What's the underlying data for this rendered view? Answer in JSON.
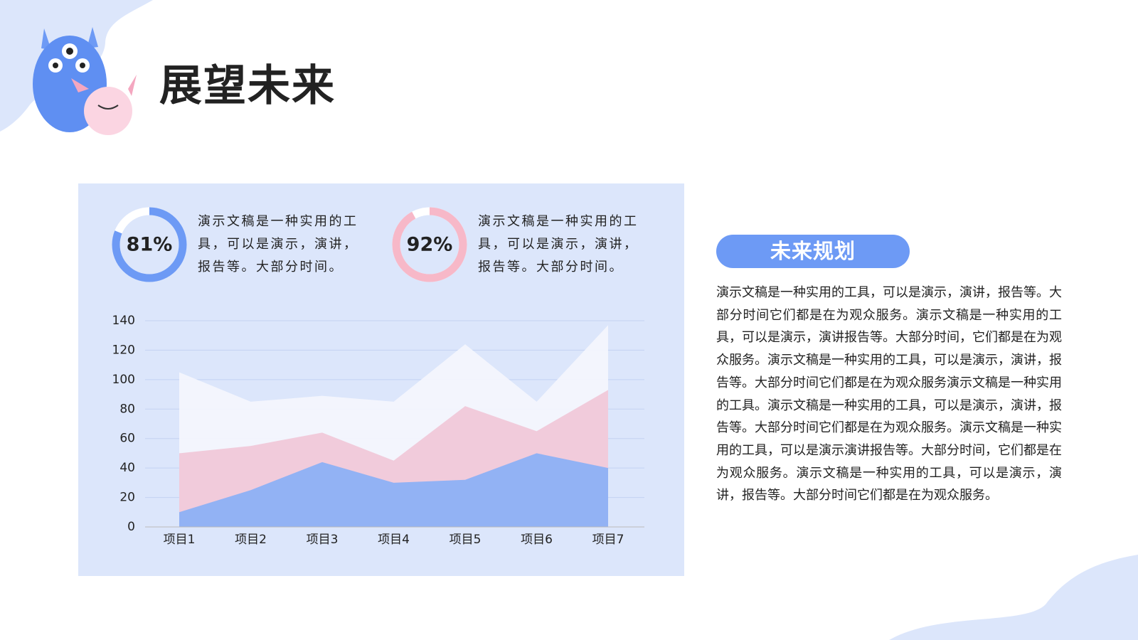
{
  "header": {
    "title": "展望未来"
  },
  "stats": [
    {
      "value": 81,
      "label": "81%",
      "color": "#6d9af5",
      "text": "演示文稿是一种实用的工具，可以是演示，演讲，报告等。大部分时间。"
    },
    {
      "value": 92,
      "label": "92%",
      "color": "#f7b8c8",
      "text": "演示文稿是一种实用的工具，可以是演示，演讲，报告等。大部分时间。"
    }
  ],
  "chart_data": {
    "type": "area",
    "categories": [
      "项目1",
      "项目2",
      "项目3",
      "项目4",
      "项目5",
      "项目6",
      "项目7"
    ],
    "series": [
      {
        "color": "#f3f6fd",
        "values": [
          105,
          85,
          89,
          85,
          124,
          85,
          137
        ]
      },
      {
        "color": "#f0c8d9",
        "values": [
          50,
          55,
          64,
          45,
          82,
          65,
          93
        ]
      },
      {
        "color": "#8cb0f6",
        "values": [
          10,
          25,
          44,
          30,
          32,
          50,
          40
        ]
      }
    ],
    "ylim": [
      0,
      140
    ],
    "yticks": [
      0,
      20,
      40,
      60,
      80,
      100,
      120,
      140
    ],
    "grid": true
  },
  "side": {
    "heading": "未来规划",
    "text": "演示文稿是一种实用的工具，可以是演示，演讲，报告等。大部分时间它们都是在为观众服务。演示文稿是一种实用的工具，可以是演示，演讲报告等。大部分时间，它们都是在为观众服务。演示文稿是一种实用的工具，可以是演示，演讲，报告等。大部分时间它们都是在为观众服务演示文稿是一种实用的工具。演示文稿是一种实用的工具，可以是演示，演讲，报告等。大部分时间它们都是在为观众服务。演示文稿是一种实用的工具，可以是演示演讲报告等。大部分时间，它们都是在为观众服务。演示文稿是一种实用的工具，可以是演示，演讲，报告等。大部分时间它们都是在为观众服务。"
  }
}
